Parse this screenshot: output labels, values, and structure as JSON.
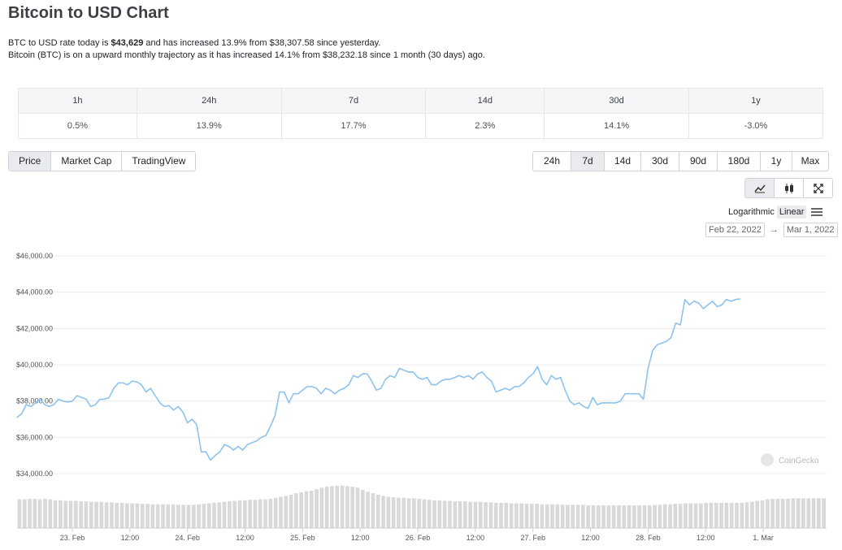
{
  "header": {
    "title": "Bitcoin to USD Chart",
    "line1_a": "BTC to USD rate today is ",
    "line1_price": "$43,629",
    "line1_b": " and has increased 13.9% from $38,307.58 since yesterday.",
    "line2": "Bitcoin (BTC) is on a upward monthly trajectory as it has increased 14.1% from $38,232.18 since 1 month (30 days) ago."
  },
  "change_table": {
    "headers": [
      "1h",
      "24h",
      "7d",
      "14d",
      "30d",
      "1y"
    ],
    "values": [
      "0.5%",
      "13.9%",
      "17.7%",
      "2.3%",
      "14.1%",
      "-3.0%"
    ]
  },
  "tabs": [
    "Price",
    "Market Cap",
    "TradingView"
  ],
  "ranges": [
    "24h",
    "7d",
    "14d",
    "30d",
    "90d",
    "180d",
    "1y",
    "Max"
  ],
  "scale": {
    "log": "Logarithmic",
    "linear": "Linear"
  },
  "date_range": {
    "from": "Feb 22, 2022",
    "arrow": "→",
    "to": "Mar 1, 2022"
  },
  "watermark": "CoinGecko",
  "chart_data": {
    "type": "line",
    "ylim": [
      33000,
      46500
    ],
    "yticks": [
      34000,
      36000,
      38000,
      40000,
      42000,
      44000,
      46000
    ],
    "ytick_labels": [
      "$34,000.00",
      "$36,000.00",
      "$38,000.00",
      "$40,000.00",
      "$42,000.00",
      "$44,000.00",
      "$46,000.00"
    ],
    "xlim": [
      -0.48,
      6.55
    ],
    "xticks": [
      0,
      0.5,
      1,
      1.5,
      2,
      2.5,
      3,
      3.5,
      4,
      4.5,
      5,
      5.5,
      6
    ],
    "xtick_labels": [
      "23. Feb",
      "12:00",
      "24. Feb",
      "12:00",
      "25. Feb",
      "12:00",
      "26. Feb",
      "12:00",
      "27. Feb",
      "12:00",
      "28. Feb",
      "12:00",
      "1. Mar"
    ],
    "series": [
      {
        "values": [
          [
            -0.48,
            37100
          ],
          [
            -0.44,
            37300
          ],
          [
            -0.4,
            37800
          ],
          [
            -0.36,
            37700
          ],
          [
            -0.32,
            37900
          ],
          [
            -0.28,
            38100
          ],
          [
            -0.24,
            37800
          ],
          [
            -0.2,
            37700
          ],
          [
            -0.16,
            37800
          ],
          [
            -0.12,
            38100
          ],
          [
            -0.08,
            38000
          ],
          [
            -0.04,
            37950
          ],
          [
            0,
            38000
          ],
          [
            0.04,
            38300
          ],
          [
            0.08,
            38200
          ],
          [
            0.12,
            38100
          ],
          [
            0.16,
            37700
          ],
          [
            0.2,
            37800
          ],
          [
            0.24,
            38100
          ],
          [
            0.28,
            38100
          ],
          [
            0.32,
            38200
          ],
          [
            0.36,
            38700
          ],
          [
            0.4,
            39000
          ],
          [
            0.44,
            39000
          ],
          [
            0.48,
            38900
          ],
          [
            0.52,
            39100
          ],
          [
            0.56,
            39050
          ],
          [
            0.6,
            38900
          ],
          [
            0.64,
            38500
          ],
          [
            0.68,
            38700
          ],
          [
            0.72,
            38300
          ],
          [
            0.76,
            37900
          ],
          [
            0.8,
            37700
          ],
          [
            0.84,
            37750
          ],
          [
            0.88,
            37500
          ],
          [
            0.92,
            37700
          ],
          [
            0.96,
            37400
          ],
          [
            1,
            36800
          ],
          [
            1.04,
            37000
          ],
          [
            1.08,
            36700
          ],
          [
            1.12,
            35200
          ],
          [
            1.16,
            35200
          ],
          [
            1.2,
            34750
          ],
          [
            1.24,
            35000
          ],
          [
            1.28,
            35200
          ],
          [
            1.32,
            35600
          ],
          [
            1.36,
            35500
          ],
          [
            1.4,
            35300
          ],
          [
            1.44,
            35500
          ],
          [
            1.48,
            35300
          ],
          [
            1.52,
            35600
          ],
          [
            1.56,
            35700
          ],
          [
            1.6,
            35800
          ],
          [
            1.64,
            36000
          ],
          [
            1.68,
            36100
          ],
          [
            1.72,
            36600
          ],
          [
            1.76,
            37200
          ],
          [
            1.8,
            38500
          ],
          [
            1.84,
            38500
          ],
          [
            1.88,
            37900
          ],
          [
            1.92,
            38400
          ],
          [
            1.96,
            38400
          ],
          [
            2,
            38600
          ],
          [
            2.04,
            38800
          ],
          [
            2.08,
            38800
          ],
          [
            2.12,
            38700
          ],
          [
            2.16,
            38400
          ],
          [
            2.2,
            38700
          ],
          [
            2.24,
            38600
          ],
          [
            2.28,
            38400
          ],
          [
            2.32,
            38600
          ],
          [
            2.36,
            38700
          ],
          [
            2.4,
            38900
          ],
          [
            2.44,
            39400
          ],
          [
            2.48,
            39300
          ],
          [
            2.52,
            39500
          ],
          [
            2.56,
            39500
          ],
          [
            2.6,
            39100
          ],
          [
            2.64,
            38600
          ],
          [
            2.68,
            38700
          ],
          [
            2.72,
            39200
          ],
          [
            2.76,
            39400
          ],
          [
            2.8,
            39300
          ],
          [
            2.84,
            39800
          ],
          [
            2.88,
            39700
          ],
          [
            2.92,
            39600
          ],
          [
            2.96,
            39600
          ],
          [
            3,
            39300
          ],
          [
            3.04,
            39200
          ],
          [
            3.08,
            39300
          ],
          [
            3.12,
            38900
          ],
          [
            3.16,
            38900
          ],
          [
            3.2,
            39100
          ],
          [
            3.24,
            39200
          ],
          [
            3.28,
            39200
          ],
          [
            3.32,
            39300
          ],
          [
            3.36,
            39400
          ],
          [
            3.4,
            39300
          ],
          [
            3.44,
            39400
          ],
          [
            3.48,
            39200
          ],
          [
            3.52,
            39500
          ],
          [
            3.56,
            39600
          ],
          [
            3.6,
            39300
          ],
          [
            3.64,
            39100
          ],
          [
            3.68,
            38500
          ],
          [
            3.72,
            38600
          ],
          [
            3.76,
            38700
          ],
          [
            3.8,
            38600
          ],
          [
            3.84,
            38800
          ],
          [
            3.88,
            38800
          ],
          [
            3.92,
            39000
          ],
          [
            3.96,
            39300
          ],
          [
            4,
            39500
          ],
          [
            4.04,
            39900
          ],
          [
            4.08,
            39200
          ],
          [
            4.12,
            38900
          ],
          [
            4.16,
            39400
          ],
          [
            4.2,
            39200
          ],
          [
            4.24,
            39300
          ],
          [
            4.28,
            38600
          ],
          [
            4.32,
            38000
          ],
          [
            4.36,
            37800
          ],
          [
            4.4,
            37900
          ],
          [
            4.44,
            37700
          ],
          [
            4.48,
            37600
          ],
          [
            4.52,
            38200
          ],
          [
            4.56,
            37800
          ],
          [
            4.6,
            37900
          ],
          [
            4.64,
            37900
          ],
          [
            4.68,
            37900
          ],
          [
            4.72,
            37900
          ],
          [
            4.76,
            38000
          ],
          [
            4.8,
            38400
          ],
          [
            4.84,
            38400
          ],
          [
            4.88,
            38400
          ],
          [
            4.92,
            38400
          ],
          [
            4.96,
            38100
          ],
          [
            5,
            39800
          ],
          [
            5.04,
            40800
          ],
          [
            5.08,
            41100
          ],
          [
            5.12,
            41200
          ],
          [
            5.16,
            41300
          ],
          [
            5.2,
            41500
          ],
          [
            5.24,
            42300
          ],
          [
            5.28,
            42200
          ],
          [
            5.32,
            43600
          ],
          [
            5.36,
            43300
          ],
          [
            5.4,
            43500
          ],
          [
            5.44,
            43400
          ],
          [
            5.48,
            43100
          ],
          [
            5.52,
            43300
          ],
          [
            5.56,
            43500
          ],
          [
            5.6,
            43200
          ],
          [
            5.64,
            43300
          ],
          [
            5.68,
            43600
          ],
          [
            5.72,
            43500
          ],
          [
            5.76,
            43600
          ],
          [
            5.8,
            43629
          ]
        ]
      }
    ],
    "volume": [
      0.57,
      0.57,
      0.58,
      0.58,
      0.57,
      0.58,
      0.57,
      0.55,
      0.55,
      0.54,
      0.54,
      0.54,
      0.53,
      0.53,
      0.52,
      0.52,
      0.52,
      0.51,
      0.51,
      0.5,
      0.5,
      0.49,
      0.49,
      0.49,
      0.48,
      0.48,
      0.47,
      0.47,
      0.47,
      0.47,
      0.47,
      0.46,
      0.46,
      0.46,
      0.46,
      0.47,
      0.48,
      0.49,
      0.5,
      0.51,
      0.52,
      0.53,
      0.54,
      0.55,
      0.55,
      0.56,
      0.56,
      0.57,
      0.57,
      0.58,
      0.6,
      0.62,
      0.64,
      0.66,
      0.69,
      0.71,
      0.73,
      0.74,
      0.77,
      0.8,
      0.82,
      0.83,
      0.84,
      0.84,
      0.83,
      0.82,
      0.8,
      0.76,
      0.72,
      0.69,
      0.66,
      0.64,
      0.62,
      0.61,
      0.6,
      0.6,
      0.59,
      0.59,
      0.58,
      0.57,
      0.56,
      0.55,
      0.55,
      0.54,
      0.54,
      0.53,
      0.53,
      0.53,
      0.52,
      0.52,
      0.52,
      0.51,
      0.51,
      0.5,
      0.5,
      0.5,
      0.49,
      0.49,
      0.49,
      0.48,
      0.48,
      0.48,
      0.47,
      0.47,
      0.47,
      0.47,
      0.46,
      0.46,
      0.46,
      0.46,
      0.46,
      0.45,
      0.45,
      0.45,
      0.45,
      0.45,
      0.45,
      0.45,
      0.45,
      0.45,
      0.45,
      0.45,
      0.45,
      0.45,
      0.46,
      0.46,
      0.47,
      0.47,
      0.48,
      0.48,
      0.49,
      0.49,
      0.49,
      0.49,
      0.5,
      0.5,
      0.5,
      0.5,
      0.5,
      0.5,
      0.5,
      0.5,
      0.51,
      0.52,
      0.54,
      0.55,
      0.57,
      0.58,
      0.58,
      0.58,
      0.58,
      0.59,
      0.59,
      0.59,
      0.59,
      0.59,
      0.59,
      0.59
    ]
  }
}
